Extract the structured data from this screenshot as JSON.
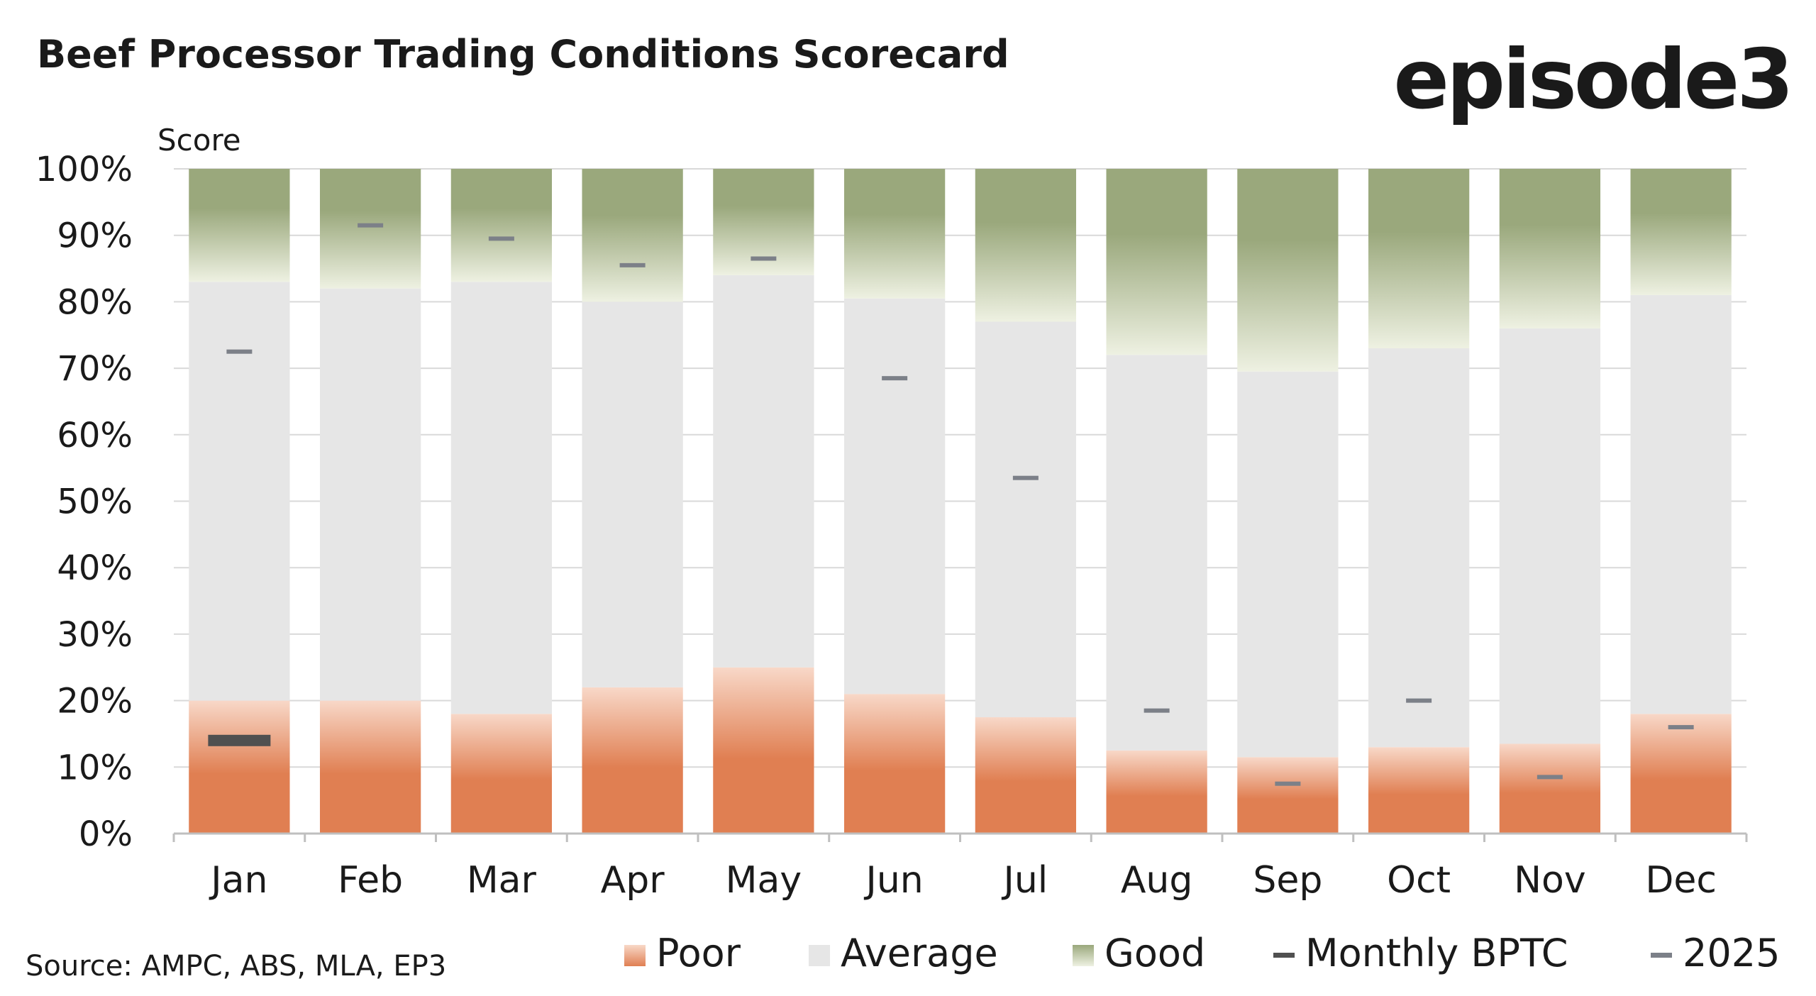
{
  "colors": {
    "poor": "#e07f52",
    "poor_light": "#f8d8c8",
    "average": "#e6e6e6",
    "good": "#9aa87c",
    "good_light": "#eef1e2",
    "monthly_bptc": "#505050",
    "year_2025": "#7c8088",
    "grid": "#d9d9d9",
    "axis": "#bfbfbf",
    "text": "#1a1a1a"
  },
  "chart_data": {
    "type": "bar",
    "title": "Beef Processor Trading Conditions Scorecard",
    "ylabel": "Score",
    "source": "Source: AMPC, ABS, MLA, EP3",
    "logo": "episode3",
    "ylim": [
      0,
      100
    ],
    "yticks": [
      0,
      10,
      20,
      30,
      40,
      50,
      60,
      70,
      80,
      90,
      100
    ],
    "ytick_labels": [
      "0%",
      "10%",
      "20%",
      "30%",
      "40%",
      "50%",
      "60%",
      "70%",
      "80%",
      "90%",
      "100%"
    ],
    "grid": true,
    "legend_position": "bottom",
    "categories": [
      "Jan",
      "Feb",
      "Mar",
      "Apr",
      "May",
      "Jun",
      "Jul",
      "Aug",
      "Sep",
      "Oct",
      "Nov",
      "Dec"
    ],
    "stacked_series": [
      {
        "name": "Poor",
        "values": [
          20,
          20,
          18,
          22,
          25,
          21,
          17.5,
          12.5,
          11.5,
          13,
          13.5,
          18
        ]
      },
      {
        "name": "Average",
        "values": [
          63,
          62,
          65,
          58,
          59,
          59.5,
          59.5,
          59.5,
          58,
          60,
          62.5,
          63
        ]
      },
      {
        "name": "Good",
        "values": [
          17,
          18,
          17,
          20,
          16,
          19.5,
          23,
          28,
          30.5,
          27,
          24,
          19
        ]
      }
    ],
    "markers": [
      {
        "name": "Monthly BPTC",
        "values": [
          14,
          null,
          null,
          null,
          null,
          null,
          null,
          null,
          null,
          null,
          null,
          null
        ]
      },
      {
        "name": "2025",
        "values": [
          72.5,
          91.5,
          89.5,
          85.5,
          86.5,
          68.5,
          53.5,
          18.5,
          7.5,
          20,
          8.5,
          16
        ]
      }
    ]
  }
}
